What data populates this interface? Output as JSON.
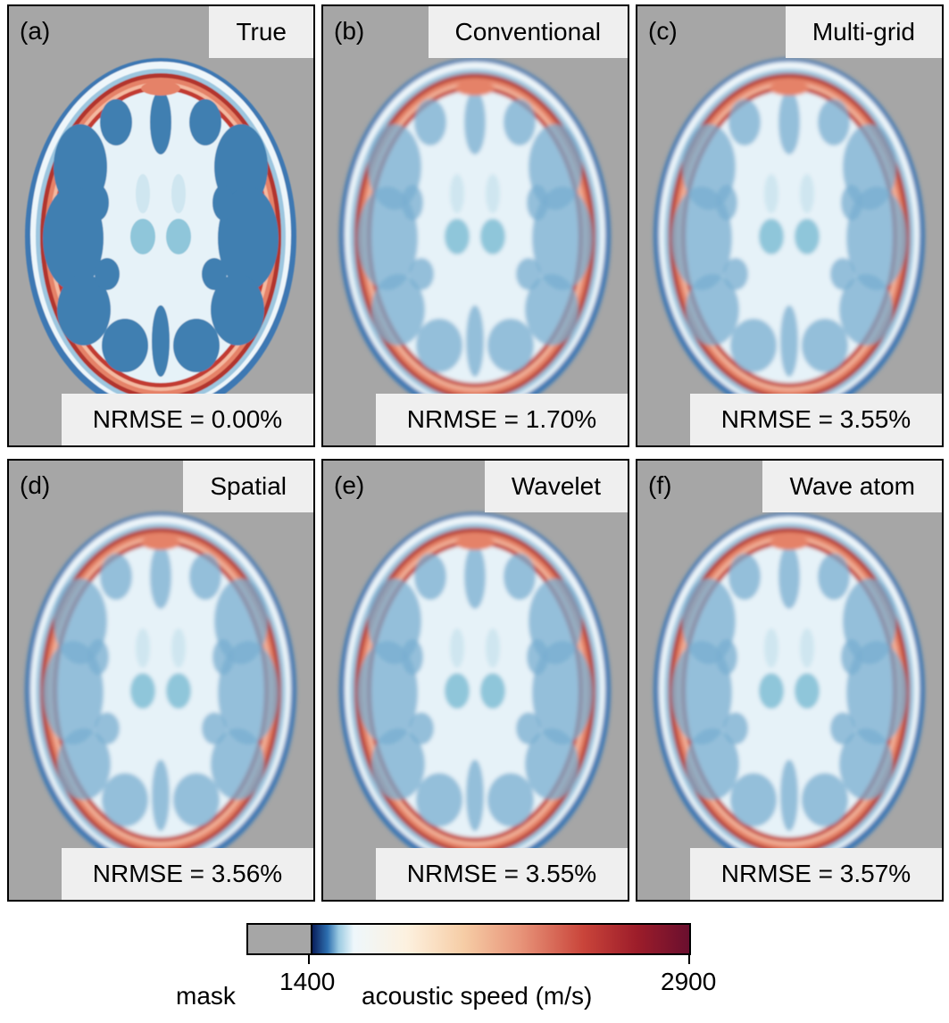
{
  "panels": [
    {
      "label": "(a)",
      "method": "True",
      "error": "NRMSE = 0.00%"
    },
    {
      "label": "(b)",
      "method": "Conventional",
      "error": "NRMSE = 1.70%"
    },
    {
      "label": "(c)",
      "method": "Multi-grid",
      "error": "NRMSE = 3.55%"
    },
    {
      "label": "(d)",
      "method": "Spatial",
      "error": "NRMSE = 3.56%"
    },
    {
      "label": "(e)",
      "method": "Wavelet",
      "error": "NRMSE = 3.55%"
    },
    {
      "label": "(f)",
      "method": "Wave atom",
      "error": "NRMSE = 3.57%"
    }
  ],
  "colorbar": {
    "mask_label": "mask",
    "min": "1400",
    "max": "2900",
    "title": "acoustic speed (m/s)",
    "colors": [
      "#a6a6a6",
      "#0a1f5c",
      "#2d6fb0",
      "#eef7fb",
      "#f6cda6",
      "#c9443a",
      "#6a0f2e"
    ]
  }
}
